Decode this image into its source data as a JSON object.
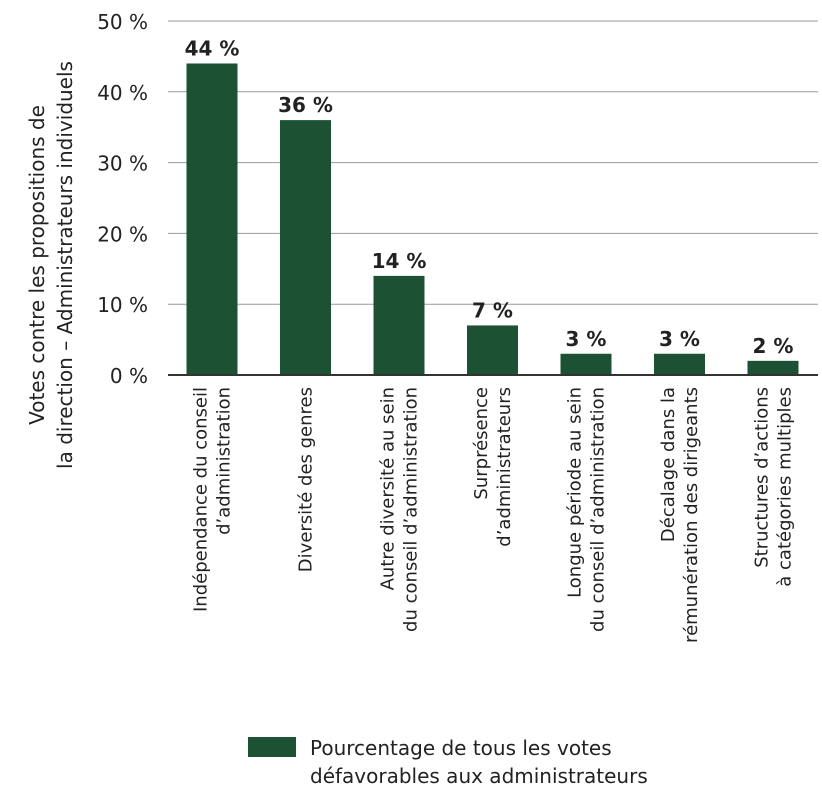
{
  "chart_data": {
    "type": "bar",
    "ylabel": "Votes contre les propositions de la direction – Administrateurs individuels",
    "ylabel_lines": [
      "Votes contre les propositions de",
      "la direction – Administrateurs individuels"
    ],
    "ylim": [
      0,
      50
    ],
    "yticks": [
      {
        "value": 0,
        "label": "0 %"
      },
      {
        "value": 10,
        "label": "10 %"
      },
      {
        "value": 20,
        "label": "20 %"
      },
      {
        "value": 30,
        "label": "30 %"
      },
      {
        "value": 40,
        "label": "40 %"
      },
      {
        "value": 50,
        "label": "50 %"
      }
    ],
    "grid": true,
    "color": "#1c5233",
    "categories": [
      {
        "lines": [
          "Indépendance du conseil",
          "d’administration"
        ]
      },
      {
        "lines": [
          "Diversité des genres"
        ]
      },
      {
        "lines": [
          "Autre diversité au sein",
          "du conseil d’administration"
        ]
      },
      {
        "lines": [
          "Surprésence",
          "d’administrateurs"
        ]
      },
      {
        "lines": [
          "Longue période au sein",
          "du conseil d’administration"
        ]
      },
      {
        "lines": [
          "Décalage dans la",
          "rémunération des dirigeants"
        ]
      },
      {
        "lines": [
          "Structures d’actions",
          "à catégories multiples"
        ]
      }
    ],
    "series": [
      {
        "name": "Pourcentage de tous les votes défavorables aux administrateurs",
        "values": [
          44,
          36,
          14,
          7,
          3,
          3,
          2
        ],
        "labels": [
          "44 %",
          "36 %",
          "14 %",
          "7 %",
          "3 %",
          "3 %",
          "2 %"
        ]
      }
    ],
    "legend": {
      "position": "bottom",
      "lines": [
        "Pourcentage de tous les votes",
        "défavorables aux administrateurs"
      ]
    }
  }
}
